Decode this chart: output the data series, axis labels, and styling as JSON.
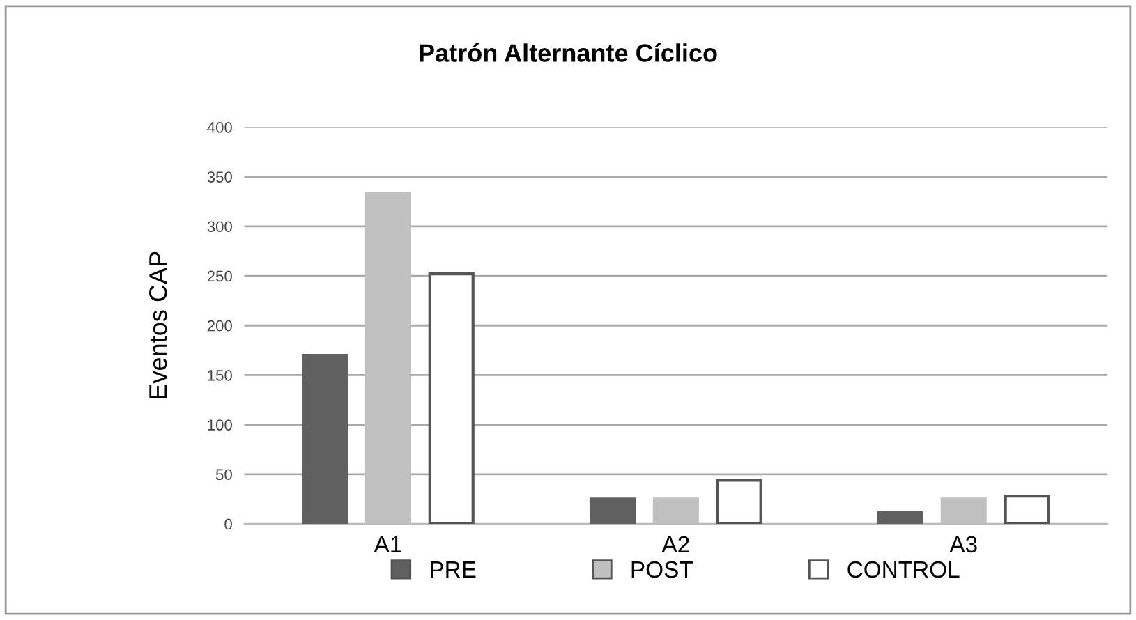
{
  "chart_data": {
    "type": "bar",
    "title": "Patrón Alternante Cíclico",
    "ylabel": "Eventos CAP",
    "categories": [
      "A1",
      "A2",
      "A3"
    ],
    "series": [
      {
        "name": "PRE",
        "color": "#606060",
        "values": [
          170,
          25,
          12
        ]
      },
      {
        "name": "POST",
        "color": "#c0c0c0",
        "values": [
          333,
          25,
          25
        ]
      },
      {
        "name": "CONTROL",
        "color": "#ffffff",
        "values": [
          252,
          44,
          28
        ]
      }
    ],
    "ylim": [
      0,
      400
    ],
    "yticks": [
      0,
      50,
      100,
      150,
      200,
      250,
      300,
      350,
      400
    ],
    "grid": "y",
    "legend": "bottom"
  }
}
